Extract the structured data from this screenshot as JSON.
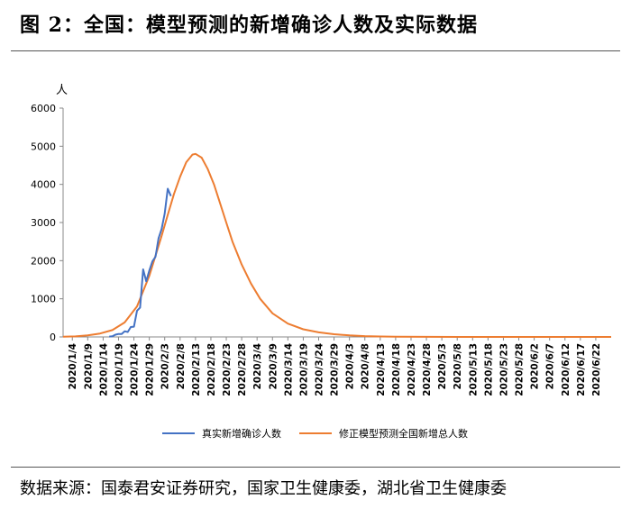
{
  "header": {
    "title": "图 2：全国：模型预测的新增确诊人数及实际数据"
  },
  "footer": {
    "source": "数据来源：国泰君安证券研究，国家卫生健康委，湖北省卫生健康委"
  },
  "chart_data": {
    "type": "line",
    "title": "",
    "ylabel": "人",
    "xlabel": "",
    "ylim": [
      0,
      6000
    ],
    "yticks": [
      0,
      1000,
      2000,
      3000,
      4000,
      5000,
      6000
    ],
    "xlim": [
      "2020/1/1",
      "2020/6/27"
    ],
    "xticks": [
      "2020/1/4",
      "2020/1/9",
      "2020/1/14",
      "2020/1/19",
      "2020/1/24",
      "2020/1/29",
      "2020/2/3",
      "2020/2/8",
      "2020/2/13",
      "2020/2/18",
      "2020/2/23",
      "2020/2/28",
      "2020/3/4",
      "2020/3/9",
      "2020/3/14",
      "2020/3/19",
      "2020/3/24",
      "2020/3/29",
      "2020/4/3",
      "2020/4/8",
      "2020/4/13",
      "2020/4/18",
      "2020/4/23",
      "2020/4/28",
      "2020/5/3",
      "2020/5/8",
      "2020/5/13",
      "2020/5/18",
      "2020/5/23",
      "2020/5/28",
      "2020/6/2",
      "2020/6/7",
      "2020/6/12",
      "2020/6/17",
      "2020/6/22"
    ],
    "grid": false,
    "legend_position": "bottom",
    "series": [
      {
        "name": "真实新增确诊人数",
        "color": "#4472C4",
        "points": [
          [
            "2020/1/16",
            10
          ],
          [
            "2020/1/17",
            17
          ],
          [
            "2020/1/18",
            60
          ],
          [
            "2020/1/19",
            77
          ],
          [
            "2020/1/20",
            77
          ],
          [
            "2020/1/21",
            149
          ],
          [
            "2020/1/22",
            131
          ],
          [
            "2020/1/23",
            259
          ],
          [
            "2020/1/24",
            270
          ],
          [
            "2020/1/25",
            688
          ],
          [
            "2020/1/26",
            769
          ],
          [
            "2020/1/27",
            1771
          ],
          [
            "2020/1/28",
            1459
          ],
          [
            "2020/1/29",
            1737
          ],
          [
            "2020/1/30",
            1982
          ],
          [
            "2020/1/31",
            2102
          ],
          [
            "2020/2/1",
            2590
          ],
          [
            "2020/2/2",
            2829
          ],
          [
            "2020/2/3",
            3235
          ],
          [
            "2020/2/4",
            3887
          ],
          [
            "2020/2/5",
            3694
          ]
        ]
      },
      {
        "name": "修正模型预测全国新增总人数",
        "color": "#ED7D31",
        "points": [
          [
            "2020/1/1",
            5
          ],
          [
            "2020/1/5",
            15
          ],
          [
            "2020/1/9",
            40
          ],
          [
            "2020/1/13",
            90
          ],
          [
            "2020/1/17",
            180
          ],
          [
            "2020/1/21",
            380
          ],
          [
            "2020/1/25",
            800
          ],
          [
            "2020/1/29",
            1600
          ],
          [
            "2020/2/2",
            2650
          ],
          [
            "2020/2/4",
            3200
          ],
          [
            "2020/2/6",
            3750
          ],
          [
            "2020/2/8",
            4200
          ],
          [
            "2020/2/10",
            4580
          ],
          [
            "2020/2/12",
            4780
          ],
          [
            "2020/2/13",
            4800
          ],
          [
            "2020/2/15",
            4700
          ],
          [
            "2020/2/17",
            4400
          ],
          [
            "2020/2/19",
            4000
          ],
          [
            "2020/2/21",
            3500
          ],
          [
            "2020/2/23",
            3000
          ],
          [
            "2020/2/25",
            2500
          ],
          [
            "2020/2/28",
            1900
          ],
          [
            "2020/3/2",
            1400
          ],
          [
            "2020/3/5",
            1000
          ],
          [
            "2020/3/9",
            620
          ],
          [
            "2020/3/14",
            350
          ],
          [
            "2020/3/19",
            200
          ],
          [
            "2020/3/24",
            120
          ],
          [
            "2020/3/29",
            70
          ],
          [
            "2020/4/3",
            40
          ],
          [
            "2020/4/8",
            22
          ],
          [
            "2020/4/13",
            12
          ],
          [
            "2020/4/18",
            6
          ],
          [
            "2020/4/28",
            2
          ],
          [
            "2020/5/13",
            0
          ],
          [
            "2020/6/27",
            0
          ]
        ]
      }
    ]
  }
}
